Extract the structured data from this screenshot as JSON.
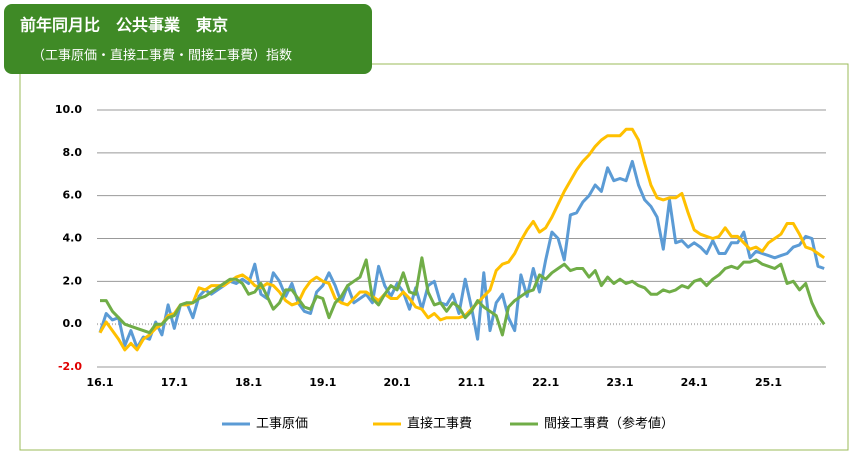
{
  "chart_data": {
    "type": "line",
    "title": "前年同月比　公共事業　東京",
    "subtitle": "（工事原価・直接工事費・間接工事費）指数",
    "categories": [
      "16.1",
      null,
      null,
      null,
      null,
      null,
      null,
      null,
      null,
      null,
      null,
      null,
      "17.1",
      null,
      null,
      null,
      null,
      null,
      null,
      null,
      null,
      null,
      null,
      null,
      "18.1",
      null,
      null,
      null,
      null,
      null,
      null,
      null,
      null,
      null,
      null,
      null,
      "19.1",
      null,
      null,
      null,
      null,
      null,
      null,
      null,
      null,
      null,
      null,
      null,
      "20.1",
      null,
      null,
      null,
      null,
      null,
      null,
      null,
      null,
      null,
      null,
      null,
      "21.1",
      null,
      null,
      null,
      null,
      null,
      null,
      null,
      null,
      null,
      null,
      null,
      "22.1",
      null,
      null,
      null,
      null,
      null,
      null,
      null,
      null,
      null,
      null,
      null,
      "23.1",
      null,
      null,
      null,
      null,
      null,
      null,
      null,
      null,
      null,
      null,
      null,
      "24.1",
      null,
      null,
      null,
      null,
      null,
      null,
      null,
      null,
      null,
      null,
      null,
      "25.1",
      null,
      null,
      null,
      null,
      null,
      null,
      null,
      null,
      null
    ],
    "ylim": [
      -2,
      10
    ],
    "yticks": [
      {
        "value": -2,
        "label": "-2.0"
      },
      {
        "value": 0,
        "label": "0.0"
      },
      {
        "value": 2,
        "label": "2.0"
      },
      {
        "value": 4,
        "label": "4.0"
      },
      {
        "value": 6,
        "label": "6.0"
      },
      {
        "value": 8,
        "label": "8.0"
      },
      {
        "value": 10,
        "label": "10.0"
      }
    ],
    "grid": true,
    "series": [
      {
        "name": "工事原価",
        "color": "#5b9bd5",
        "values": [
          -0.4,
          0.5,
          0.2,
          0.3,
          -1.0,
          -0.3,
          -1.1,
          -0.6,
          -0.7,
          0.1,
          -0.5,
          0.9,
          -0.2,
          0.9,
          1.0,
          0.3,
          1.3,
          1.6,
          1.4,
          1.6,
          1.8,
          2.0,
          1.9,
          2.1,
          1.9,
          2.8,
          1.4,
          1.2,
          2.4,
          2.0,
          1.3,
          1.9,
          1.0,
          0.6,
          0.5,
          1.5,
          1.8,
          2.4,
          1.8,
          1.0,
          1.8,
          1.0,
          1.2,
          1.4,
          1.0,
          2.7,
          1.8,
          1.3,
          1.9,
          1.5,
          0.7,
          1.7,
          0.7,
          1.8,
          2.0,
          1.0,
          0.9,
          1.4,
          0.5,
          2.1,
          0.8,
          -0.7,
          2.4,
          -0.3,
          1.0,
          1.4,
          0.3,
          -0.3,
          2.3,
          1.3,
          2.6,
          1.5,
          3.0,
          4.3,
          4.0,
          3.0,
          5.1,
          5.2,
          5.7,
          6.0,
          6.5,
          6.2,
          7.3,
          6.7,
          6.8,
          6.7,
          7.6,
          6.5,
          5.8,
          5.5,
          5.0,
          3.5,
          5.8,
          3.8,
          3.9,
          3.6,
          3.8,
          3.6,
          3.3,
          3.9,
          3.3,
          3.3,
          3.8,
          3.8,
          4.3,
          3.1,
          3.4,
          3.3,
          3.2,
          3.1,
          3.2,
          3.3,
          3.6,
          3.7,
          4.1,
          4.0,
          2.7,
          2.6
        ]
      },
      {
        "name": "直接工事費",
        "color": "#ffc000",
        "values": [
          -0.4,
          0.1,
          -0.3,
          -0.7,
          -1.2,
          -0.9,
          -1.2,
          -0.7,
          -0.5,
          -0.2,
          0.0,
          0.4,
          0.5,
          0.9,
          0.9,
          1.0,
          1.7,
          1.6,
          1.8,
          1.8,
          1.8,
          2.0,
          2.2,
          2.3,
          2.1,
          1.8,
          1.7,
          1.9,
          1.8,
          1.5,
          1.1,
          0.9,
          1.0,
          1.6,
          2.0,
          2.2,
          2.0,
          1.9,
          1.2,
          1.0,
          0.9,
          1.2,
          1.5,
          1.5,
          1.3,
          1.1,
          1.4,
          1.2,
          1.2,
          1.5,
          1.2,
          0.8,
          0.7,
          0.3,
          0.5,
          0.2,
          0.3,
          0.3,
          0.3,
          0.4,
          0.7,
          1.0,
          1.3,
          1.6,
          2.5,
          2.8,
          2.9,
          3.3,
          3.9,
          4.4,
          4.8,
          4.3,
          4.5,
          5.0,
          5.6,
          6.2,
          6.7,
          7.2,
          7.6,
          7.9,
          8.3,
          8.6,
          8.8,
          8.8,
          8.8,
          9.1,
          9.1,
          8.6,
          7.5,
          6.5,
          5.9,
          5.8,
          5.9,
          5.9,
          6.1,
          5.2,
          4.4,
          4.2,
          4.1,
          4.0,
          4.1,
          4.5,
          4.1,
          4.1,
          3.8,
          3.5,
          3.6,
          3.4,
          3.8,
          4.0,
          4.2,
          4.7,
          4.7,
          4.2,
          3.6,
          3.5,
          3.3,
          3.1
        ]
      },
      {
        "name": "間接工事費（参考値）",
        "color": "#70ad47",
        "values": [
          1.1,
          1.1,
          0.6,
          0.3,
          0.0,
          -0.1,
          -0.2,
          -0.3,
          -0.4,
          0.0,
          0.0,
          0.3,
          0.4,
          0.9,
          1.0,
          1.0,
          1.2,
          1.3,
          1.5,
          1.7,
          1.9,
          2.1,
          2.1,
          1.9,
          1.4,
          1.5,
          1.9,
          1.3,
          0.7,
          1.0,
          1.6,
          1.6,
          1.2,
          0.8,
          0.7,
          1.3,
          1.2,
          0.3,
          1.0,
          1.3,
          1.8,
          2.0,
          2.2,
          3.0,
          1.2,
          0.9,
          1.4,
          1.8,
          1.6,
          2.4,
          1.5,
          1.4,
          3.1,
          1.5,
          0.9,
          1.0,
          0.6,
          1.0,
          0.8,
          0.3,
          0.6,
          1.1,
          0.8,
          0.6,
          0.4,
          -0.5,
          0.8,
          1.1,
          1.3,
          1.5,
          1.6,
          2.3,
          2.1,
          2.4,
          2.6,
          2.8,
          2.5,
          2.6,
          2.6,
          2.2,
          2.5,
          1.8,
          2.2,
          1.9,
          2.1,
          1.9,
          2.0,
          1.8,
          1.7,
          1.4,
          1.4,
          1.6,
          1.5,
          1.6,
          1.8,
          1.7,
          2.0,
          2.1,
          1.8,
          2.1,
          2.3,
          2.6,
          2.7,
          2.6,
          2.9,
          2.9,
          3.0,
          2.8,
          2.7,
          2.6,
          2.8,
          1.9,
          2.0,
          1.6,
          1.9,
          1.0,
          0.4,
          0.0
        ]
      }
    ]
  }
}
